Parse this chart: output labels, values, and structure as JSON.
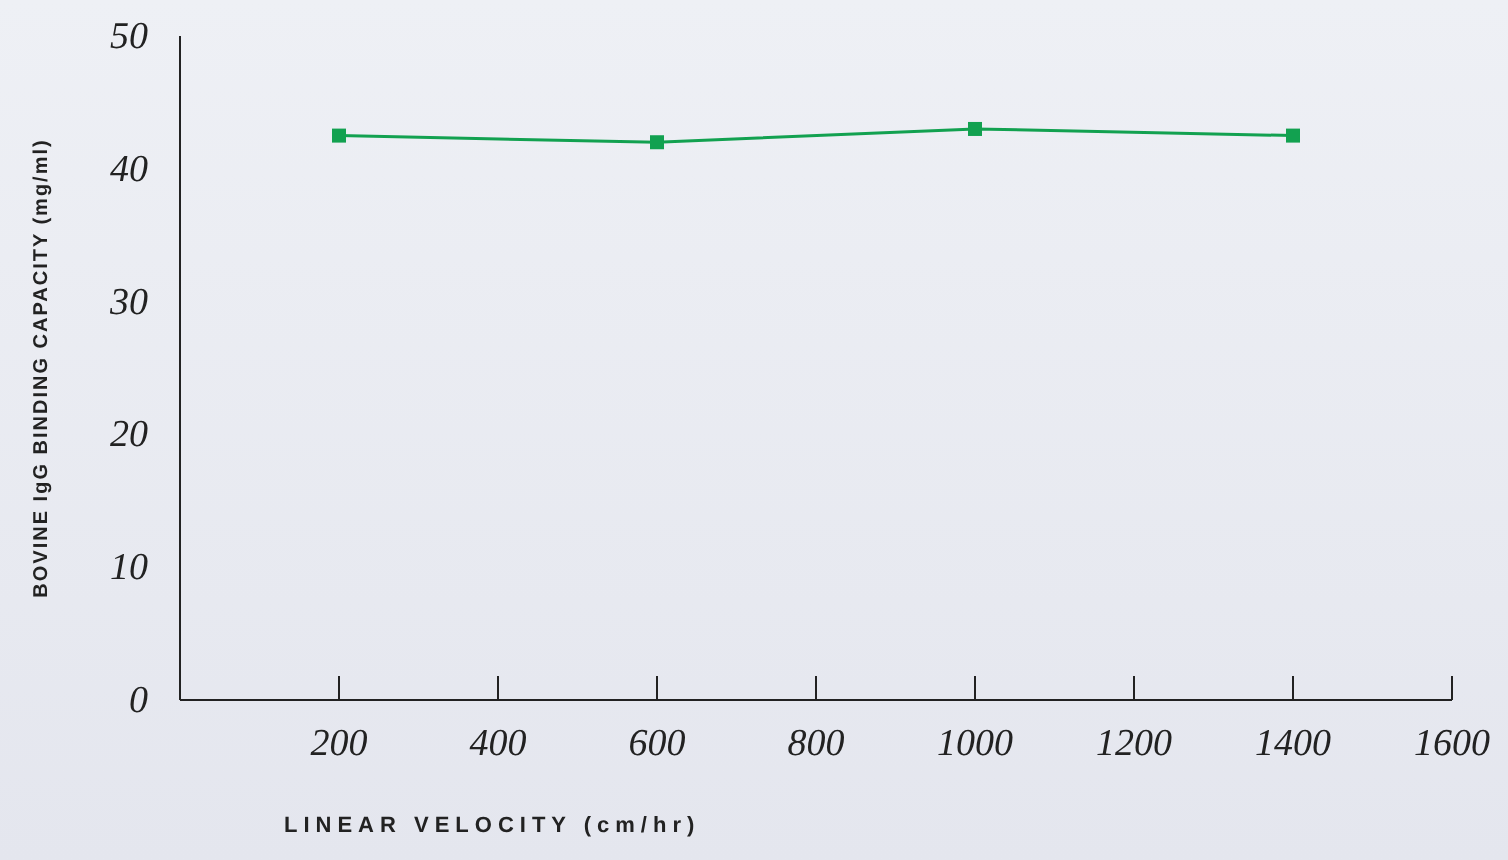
{
  "chart_data": {
    "type": "line",
    "xlabel": "LINEAR VELOCITY (cm/hr)",
    "ylabel": "BOVINE IgG BINDING CAPACITY (mg/ml)",
    "x": [
      200,
      600,
      1000,
      1400
    ],
    "series": [
      {
        "color": "#12a150",
        "values": [
          42.5,
          42,
          43,
          42.5
        ]
      }
    ],
    "xlim": [
      0,
      1600
    ],
    "xticks": [
      {
        "value": 0,
        "label": null
      },
      200,
      400,
      600,
      800,
      1000,
      1200,
      1400,
      1600
    ],
    "ylim": [
      0,
      50
    ],
    "yticks": [
      0,
      10,
      20,
      30,
      40,
      50
    ],
    "grid": false,
    "legend": false,
    "marker": "square",
    "line_style": "solid"
  }
}
